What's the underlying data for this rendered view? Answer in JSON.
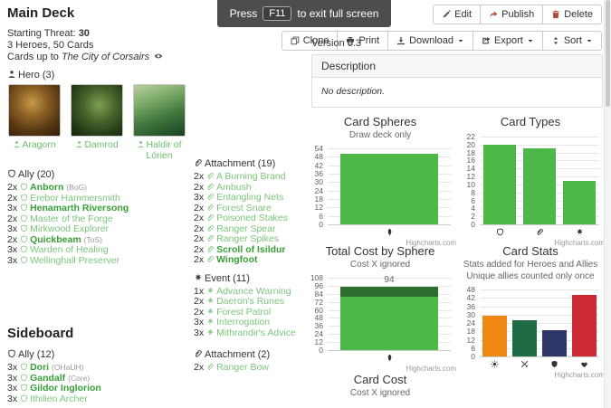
{
  "banner": {
    "press": "Press",
    "key": "F11",
    "rest": "to exit full screen"
  },
  "actions": {
    "row1": [
      {
        "name": "edit",
        "icon": "pencil-icon",
        "label": "Edit"
      },
      {
        "name": "publish",
        "icon": "share-icon",
        "label": "Publish"
      },
      {
        "name": "delete",
        "icon": "trash-icon",
        "label": "Delete"
      }
    ],
    "row2": [
      {
        "name": "clone",
        "icon": "clone-icon",
        "label": "Clone"
      },
      {
        "name": "print",
        "icon": "printer-icon",
        "label": "Print"
      },
      {
        "name": "download",
        "icon": "download-icon",
        "label": "Download",
        "caret": true
      },
      {
        "name": "export",
        "icon": "export-icon",
        "label": "Export",
        "caret": true
      },
      {
        "name": "sort",
        "icon": "sort-icon",
        "label": "Sort",
        "caret": true
      }
    ]
  },
  "version": "Version 0.3",
  "description_panel": {
    "header": "Description",
    "body": "No description."
  },
  "deck": {
    "title": "Main Deck",
    "starting_threat_label": "Starting Threat:",
    "starting_threat": "30",
    "composition": "3 Heroes, 50 Cards",
    "cards_up_to_label": "Cards up to",
    "latest_pack": "The City of Corsairs",
    "hero_section_label": "Hero (3)",
    "heroes": [
      {
        "name": "Aragorn",
        "art": "aragorn"
      },
      {
        "name": "Damrod",
        "art": "damrod"
      },
      {
        "name": "Haldir of Lórien",
        "art": "haldir"
      }
    ],
    "columns": [
      [
        {
          "header": "Ally (20)",
          "icon": "ally-icon",
          "items": [
            {
              "qty": "2x",
              "name": "Anborn",
              "pack": "(BoG)",
              "unique": true
            },
            {
              "qty": "2x",
              "name": "Erebor Hammersmith"
            },
            {
              "qty": "3x",
              "name": "Henamarth Riversong",
              "unique": true
            },
            {
              "qty": "2x",
              "name": "Master of the Forge"
            },
            {
              "qty": "3x",
              "name": "Mirkwood Explorer"
            },
            {
              "qty": "2x",
              "name": "Quickbeam",
              "pack": "(ToS)",
              "unique": true
            },
            {
              "qty": "3x",
              "name": "Warden of Healing"
            },
            {
              "qty": "3x",
              "name": "Wellinghall Preserver"
            }
          ]
        }
      ],
      [
        {
          "header": "Attachment (19)",
          "icon": "attachment-icon",
          "items": [
            {
              "qty": "2x",
              "name": "A Burning Brand"
            },
            {
              "qty": "2x",
              "name": "Ambush"
            },
            {
              "qty": "3x",
              "name": "Entangling Nets"
            },
            {
              "qty": "2x",
              "name": "Forest Snare"
            },
            {
              "qty": "2x",
              "name": "Poisoned Stakes"
            },
            {
              "qty": "2x",
              "name": "Ranger Spear"
            },
            {
              "qty": "2x",
              "name": "Ranger Spikes"
            },
            {
              "qty": "2x",
              "name": "Scroll of Isildur",
              "unique": true
            },
            {
              "qty": "2x",
              "name": "Wingfoot",
              "unique": true
            }
          ]
        },
        {
          "header": "Event (11)",
          "icon": "event-icon",
          "items": [
            {
              "qty": "1x",
              "name": "Advance Warning"
            },
            {
              "qty": "2x",
              "name": "Daeron's Runes"
            },
            {
              "qty": "2x",
              "name": "Forest Patrol"
            },
            {
              "qty": "3x",
              "name": "Interrogation"
            },
            {
              "qty": "3x",
              "name": "Mithrandir's Advice"
            }
          ]
        }
      ]
    ]
  },
  "sideboard": {
    "title": "Sideboard",
    "columns": [
      [
        {
          "header": "Ally (12)",
          "icon": "ally-icon",
          "items": [
            {
              "qty": "3x",
              "name": "Dori",
              "pack": "(OHaUH)",
              "unique": true
            },
            {
              "qty": "3x",
              "name": "Gandalf",
              "pack": "(Core)",
              "unique": true
            },
            {
              "qty": "3x",
              "name": "Gildor Inglorion",
              "unique": true
            },
            {
              "qty": "3x",
              "name": "Ithilien Archer"
            }
          ]
        }
      ],
      [
        {
          "header": "Attachment (2)",
          "icon": "attachment-icon",
          "items": [
            {
              "qty": "2x",
              "name": "Ranger Bow"
            }
          ]
        }
      ]
    ]
  },
  "chart_data": [
    {
      "id": "card-spheres",
      "type": "bar",
      "title": "Card Spheres",
      "subtitle": [
        "Draw deck only"
      ],
      "ylim": [
        0,
        54
      ],
      "ytick_step": 6,
      "grid": true,
      "legend": "none",
      "categories": [
        "lore-sphere-icon"
      ],
      "bars": [
        {
          "icon": "lore-sphere-icon",
          "segments": [
            {
              "value": 50,
              "color": "#4cb848"
            }
          ]
        }
      ],
      "credits": "Highcharts.com"
    },
    {
      "id": "card-types",
      "type": "bar",
      "title": "Card Types",
      "subtitle": [],
      "ylim": [
        0,
        22
      ],
      "ytick_step": 2,
      "grid": true,
      "legend": "none",
      "categories": [
        "ally-icon",
        "attachment-icon",
        "event-icon"
      ],
      "bars": [
        {
          "icon": "ally-icon",
          "segments": [
            {
              "value": 20,
              "color": "#4cb848"
            }
          ]
        },
        {
          "icon": "attachment-icon",
          "segments": [
            {
              "value": 19,
              "color": "#4cb848"
            }
          ]
        },
        {
          "icon": "event-icon",
          "segments": [
            {
              "value": 11,
              "color": "#4cb848"
            }
          ]
        }
      ],
      "credits": "Highcharts.com"
    },
    {
      "id": "total-cost-by-sphere",
      "type": "bar",
      "title": "Total Cost by Sphere",
      "subtitle": [
        "Cost X ignored"
      ],
      "ylim": [
        0,
        108
      ],
      "ytick_step": 12,
      "grid": true,
      "legend": "none",
      "stacked": true,
      "categories": [
        "lore-sphere-icon"
      ],
      "bars": [
        {
          "icon": "lore-sphere-icon",
          "total_label": "94",
          "segments": [
            {
              "value": 80,
              "color": "#4cb848"
            },
            {
              "value": 14,
              "color": "#2d6e2e"
            }
          ]
        }
      ],
      "credits": "Highcharts.com"
    },
    {
      "id": "card-stats",
      "type": "bar",
      "title": "Card Stats",
      "subtitle": [
        "Stats added for Heroes and Allies",
        "Unique allies counted only once"
      ],
      "ylim": [
        0,
        48
      ],
      "ytick_step": 6,
      "grid": true,
      "legend": "none",
      "categories": [
        "willpower-icon",
        "attack-icon",
        "defense-icon",
        "hitpoints-icon"
      ],
      "bars": [
        {
          "icon": "willpower-icon",
          "segments": [
            {
              "value": 29,
              "color": "#ee8713"
            }
          ]
        },
        {
          "icon": "attack-icon",
          "segments": [
            {
              "value": 26,
              "color": "#1e6b45"
            }
          ]
        },
        {
          "icon": "defense-icon",
          "segments": [
            {
              "value": 19,
              "color": "#2e3567"
            }
          ]
        },
        {
          "icon": "hitpoints-icon",
          "segments": [
            {
              "value": 44,
              "color": "#cc2a33"
            }
          ]
        }
      ],
      "credits": "Highcharts.com"
    },
    {
      "id": "card-cost",
      "type": "bar",
      "title": "Card Cost",
      "subtitle": [
        "Cost X ignored"
      ],
      "bars": []
    }
  ],
  "palette": {
    "card_link": "#7cc47c",
    "card_link_unique": "#379f37",
    "chart_green": "#4cb848",
    "chart_dark_green": "#2d6e2e",
    "stat_willpower": "#ee8713",
    "stat_attack": "#1e6b45",
    "stat_defense": "#2e3567",
    "stat_hitpoints": "#cc2a33",
    "banner_bg": "#4d4d4d"
  }
}
